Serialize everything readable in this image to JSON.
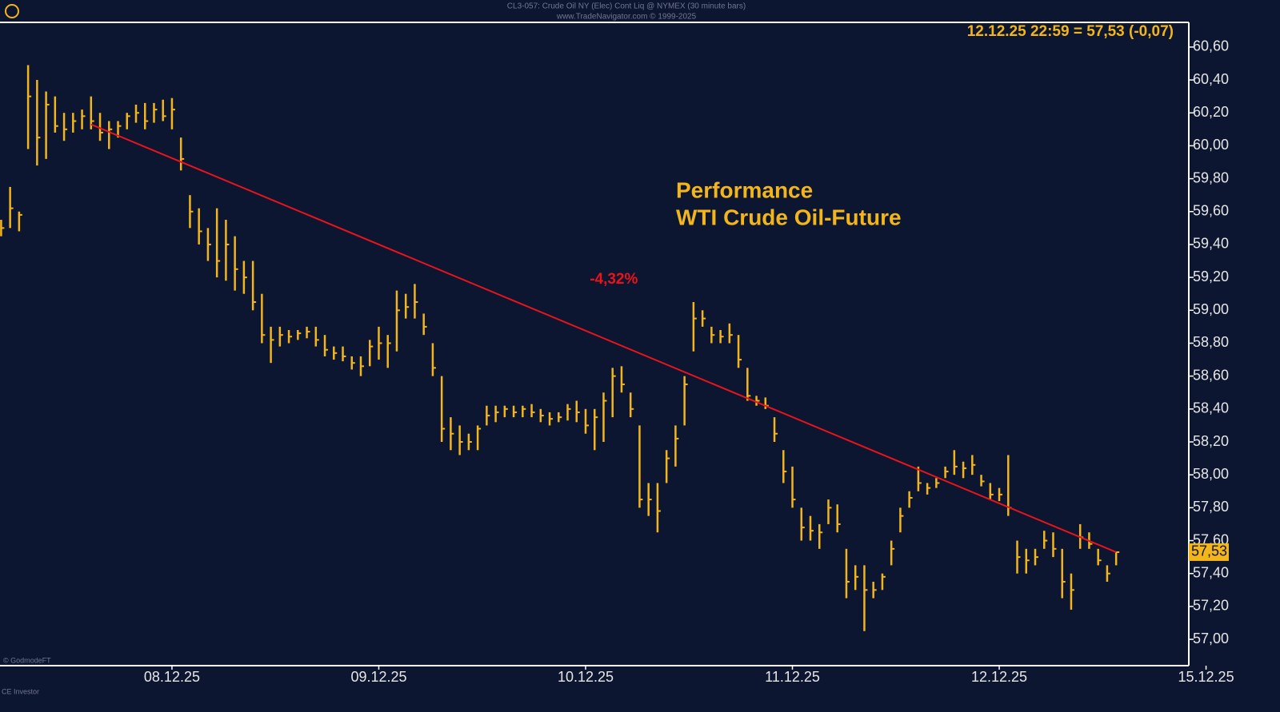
{
  "chart_data": {
    "type": "ohlc",
    "header": [
      "CL3-057:  Crude Oil NY (Elec) Cont Liq @ NYMEX  (30 minute bars)",
      "www.TradeNavigator.com © 1999-2025"
    ],
    "quote": "12.12.25 22:59 = 57,53 (-0,07)",
    "annotation": [
      "Performance",
      "WTI Crude Oil-Future"
    ],
    "footer": [
      "© GodmodeFT",
      "CE Investor"
    ],
    "color": "#f2b51b",
    "categories": [
      null,
      null,
      null,
      null,
      null,
      null,
      null,
      null,
      null,
      null,
      null,
      null,
      null,
      null,
      null,
      null,
      null,
      null,
      null,
      "08.12.25",
      null,
      null,
      null,
      null,
      null,
      null,
      null,
      null,
      null,
      null,
      null,
      null,
      null,
      null,
      null,
      null,
      null,
      null,
      null,
      null,
      null,
      null,
      "09.12.25",
      null,
      null,
      null,
      null,
      null,
      null,
      null,
      null,
      null,
      null,
      null,
      null,
      null,
      null,
      null,
      null,
      null,
      null,
      null,
      null,
      null,
      null,
      "10.12.25",
      null,
      null,
      null,
      null,
      null,
      null,
      null,
      null,
      null,
      null,
      null,
      null,
      null,
      null,
      null,
      null,
      null,
      null,
      null,
      null,
      null,
      null,
      "11.12.25",
      null,
      null,
      null,
      null,
      null,
      null,
      null,
      null,
      null,
      null,
      null,
      null,
      null,
      null,
      null,
      null,
      null,
      null,
      null,
      null,
      null,
      null,
      "12.12.25",
      null,
      null,
      null,
      null,
      null,
      null,
      null,
      null,
      null,
      null,
      null,
      null,
      null,
      null,
      null,
      null,
      null,
      null,
      null,
      null,
      null,
      null,
      "15.12.25"
    ],
    "high": [
      59.55,
      59.75,
      59.6,
      60.49,
      60.4,
      60.33,
      60.3,
      60.2,
      60.2,
      60.22,
      60.3,
      60.2,
      60.15,
      60.15,
      60.2,
      60.25,
      60.26,
      60.26,
      60.28,
      60.29,
      60.05,
      59.7,
      59.62,
      59.5,
      59.62,
      59.55,
      59.45,
      59.3,
      59.3,
      59.1,
      58.9,
      58.9,
      58.88,
      58.88,
      58.9,
      58.9,
      58.85,
      58.78,
      58.78,
      58.72,
      58.72,
      58.82,
      58.9,
      58.85,
      59.12,
      59.1,
      59.16,
      58.98,
      58.8,
      58.6,
      58.35,
      58.3,
      58.25,
      58.3,
      58.42,
      58.42,
      58.42,
      58.42,
      58.42,
      58.43,
      58.4,
      58.38,
      58.38,
      58.43,
      58.45,
      58.4,
      58.4,
      58.5,
      58.65,
      58.66,
      58.5,
      58.3,
      57.95,
      57.95,
      58.15,
      58.3,
      58.6,
      59.05,
      59.0,
      58.9,
      58.88,
      58.92,
      58.85,
      58.65,
      58.48,
      58.47,
      58.35,
      58.15,
      58.05,
      57.8,
      57.75,
      57.7,
      57.85,
      57.82,
      57.55,
      57.45,
      57.45,
      57.35,
      57.4,
      57.6,
      57.8,
      57.9,
      58.05,
      57.95,
      57.98,
      58.05,
      58.15,
      58.08,
      58.12,
      58.0,
      57.95,
      57.92,
      58.12,
      57.6,
      57.55,
      57.55,
      57.66,
      57.65,
      57.55,
      57.4,
      57.7,
      57.65,
      57.55,
      57.45,
      57.53,
      null,
      null,
      null,
      null,
      null,
      null,
      null,
      null,
      null,
      null
    ],
    "low": [
      59.45,
      59.5,
      59.48,
      59.98,
      59.88,
      59.92,
      60.08,
      60.03,
      60.08,
      60.1,
      60.1,
      60.03,
      59.98,
      60.05,
      60.1,
      60.14,
      60.1,
      60.14,
      60.15,
      60.1,
      59.85,
      59.5,
      59.4,
      59.3,
      59.2,
      59.18,
      59.12,
      59.1,
      59.0,
      58.8,
      58.68,
      58.78,
      58.8,
      58.82,
      58.83,
      58.78,
      58.72,
      58.7,
      58.69,
      58.64,
      58.6,
      58.66,
      58.7,
      58.65,
      58.75,
      58.95,
      58.95,
      58.85,
      58.6,
      58.2,
      58.15,
      58.12,
      58.15,
      58.15,
      58.3,
      58.32,
      58.35,
      58.35,
      58.35,
      58.35,
      58.32,
      58.3,
      58.32,
      58.33,
      58.32,
      58.25,
      58.15,
      58.2,
      58.35,
      58.5,
      58.35,
      57.8,
      57.75,
      57.65,
      57.95,
      58.05,
      58.3,
      58.75,
      58.9,
      58.8,
      58.8,
      58.8,
      58.65,
      58.45,
      58.42,
      58.4,
      58.2,
      57.95,
      57.8,
      57.6,
      57.6,
      57.55,
      57.7,
      57.65,
      57.25,
      57.3,
      57.05,
      57.25,
      57.3,
      57.45,
      57.65,
      57.8,
      57.9,
      57.88,
      57.92,
      57.98,
      58.0,
      57.98,
      58.0,
      57.93,
      57.85,
      57.84,
      57.75,
      57.4,
      57.4,
      57.45,
      57.55,
      57.5,
      57.25,
      57.18,
      57.55,
      57.55,
      57.45,
      57.35,
      57.45,
      null,
      null,
      null,
      null,
      null,
      null,
      null,
      null,
      null,
      null
    ],
    "close": [
      59.5,
      59.62,
      59.58,
      60.3,
      60.05,
      60.25,
      60.12,
      60.1,
      60.15,
      60.18,
      60.15,
      60.08,
      60.1,
      60.12,
      60.18,
      60.2,
      60.15,
      60.22,
      60.18,
      60.22,
      59.92,
      59.6,
      59.48,
      59.4,
      59.3,
      59.4,
      59.25,
      59.2,
      59.05,
      58.85,
      58.82,
      58.85,
      58.84,
      58.86,
      58.87,
      58.82,
      58.76,
      58.74,
      58.72,
      58.68,
      58.66,
      58.78,
      58.8,
      58.8,
      59.0,
      59.02,
      59.05,
      58.9,
      58.65,
      58.28,
      58.25,
      58.2,
      58.2,
      58.28,
      58.36,
      58.38,
      58.4,
      58.38,
      58.4,
      58.38,
      58.36,
      58.34,
      58.35,
      58.4,
      58.38,
      58.3,
      58.35,
      58.45,
      58.6,
      58.55,
      58.4,
      57.85,
      57.85,
      57.78,
      58.1,
      58.22,
      58.55,
      58.95,
      58.95,
      58.85,
      58.84,
      58.85,
      58.7,
      58.48,
      58.45,
      58.42,
      58.25,
      58.02,
      57.85,
      57.68,
      57.66,
      57.65,
      57.8,
      57.7,
      57.35,
      57.38,
      57.3,
      57.3,
      57.38,
      57.55,
      57.75,
      57.86,
      57.95,
      57.92,
      57.95,
      58.02,
      58.05,
      58.04,
      58.06,
      57.96,
      57.88,
      57.88,
      57.8,
      57.5,
      57.48,
      57.5,
      57.6,
      57.55,
      57.35,
      57.3,
      57.62,
      57.58,
      57.48,
      57.4,
      57.53,
      null,
      null,
      null,
      null,
      null,
      null,
      null,
      null,
      null,
      null
    ],
    "trend_line": {
      "from": 10,
      "to": 124,
      "values": [
        60.13,
        57.53
      ],
      "color": "#e8141c",
      "label": "-4,32%",
      "change": -4.32
    },
    "last_price": {
      "value": 57.53,
      "label": "57,53"
    },
    "ylim": [
      56.84,
      60.75
    ],
    "yticks": [
      {
        "value": 57.0,
        "label": "57,00"
      },
      {
        "value": 57.2,
        "label": "57,20"
      },
      {
        "value": 57.4,
        "label": "57,40"
      },
      {
        "value": 57.6,
        "label": "57,60"
      },
      {
        "value": 57.8,
        "label": "57,80"
      },
      {
        "value": 58.0,
        "label": "58,00"
      },
      {
        "value": 58.2,
        "label": "58,20"
      },
      {
        "value": 58.4,
        "label": "58,40"
      },
      {
        "value": 58.6,
        "label": "58,60"
      },
      {
        "value": 58.8,
        "label": "58,80"
      },
      {
        "value": 59.0,
        "label": "59,00"
      },
      {
        "value": 59.2,
        "label": "59,20"
      },
      {
        "value": 59.4,
        "label": "59,40"
      },
      {
        "value": 59.6,
        "label": "59,60"
      },
      {
        "value": 59.8,
        "label": "59,80"
      },
      {
        "value": 60.0,
        "label": "60,00"
      },
      {
        "value": 60.2,
        "label": "60,20"
      },
      {
        "value": 60.4,
        "label": "60,40"
      },
      {
        "value": 60.6,
        "label": "60,60"
      }
    ]
  }
}
